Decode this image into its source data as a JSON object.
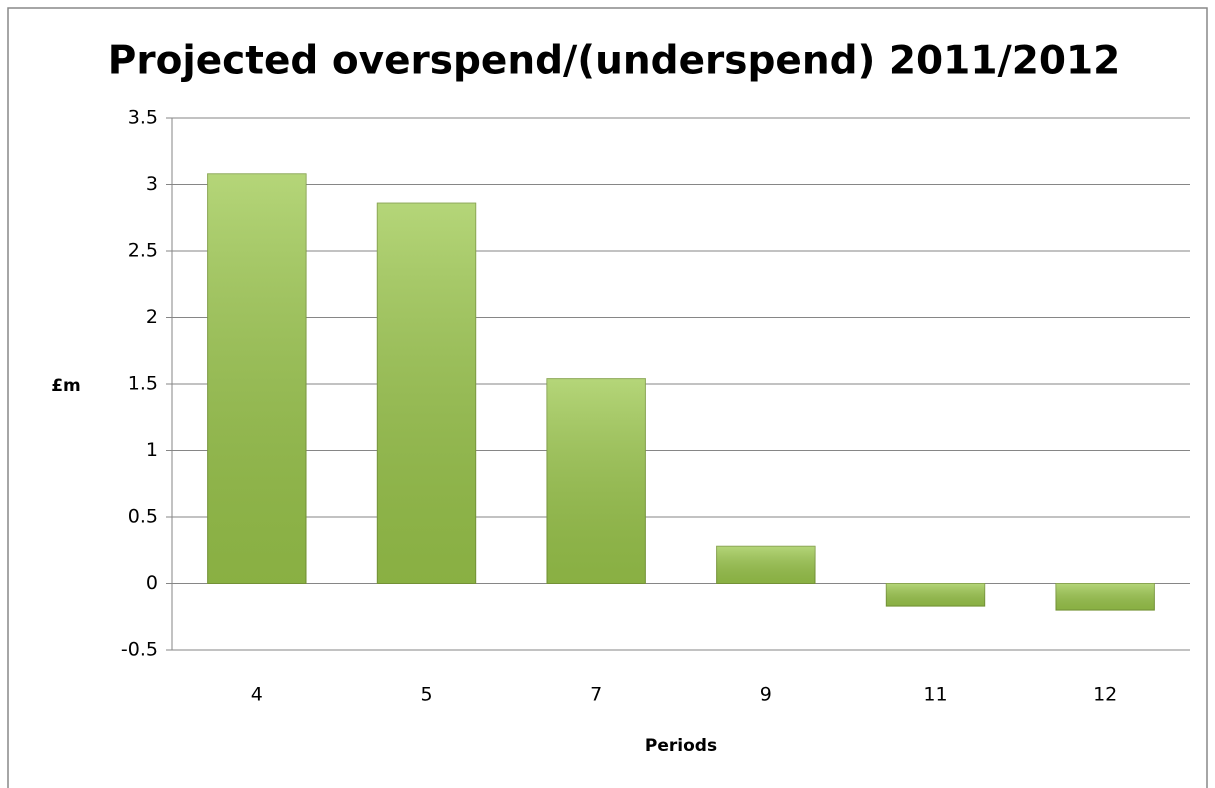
{
  "chart_data": {
    "type": "bar",
    "title": "Projected overspend/(underspend) 2011/2012",
    "x_label": "Periods",
    "y_label": "£m",
    "categories": [
      "4",
      "5",
      "7",
      "9",
      "11",
      "12"
    ],
    "values": [
      3.08,
      2.86,
      1.54,
      0.28,
      -0.17,
      -0.2
    ],
    "color": "#9cc84c",
    "ylim": [
      -0.5,
      3.5
    ],
    "yticks": [
      -0.5,
      0,
      0.5,
      1,
      1.5,
      2,
      2.5,
      3,
      3.5
    ],
    "grid": true
  }
}
